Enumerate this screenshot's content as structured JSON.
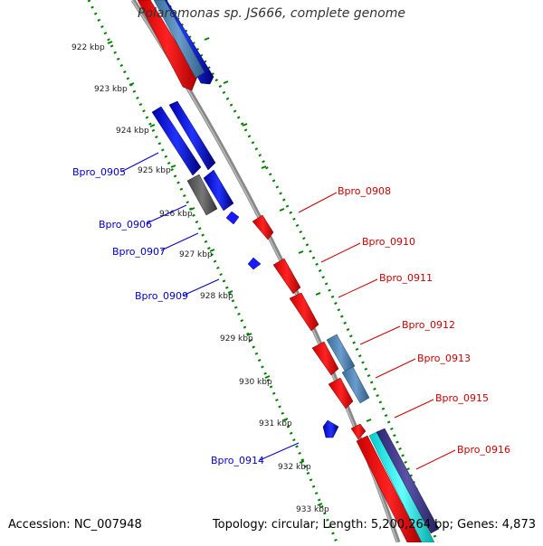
{
  "header": {
    "title": "Polaromonas sp. JS666, complete genome"
  },
  "footer": {
    "accession": "Accession: NC_007948",
    "topology": "Topology: circular; Length: 5,200,264 bp; Genes: 4,873"
  },
  "colors": {
    "forward_gene": "#ff0000",
    "reverse_gene": "#0000ff",
    "pseudo_gene": "#666666",
    "rna_gene": "#4682b4",
    "other_gene": "#00ffff",
    "misc_gene": "#483d8b",
    "backbone": "#999999",
    "scale": "#008000",
    "forward_label": "#cc0000",
    "reverse_label": "#0000cc"
  },
  "scale_labels": [
    "922 kbp",
    "923 kbp",
    "924 kbp",
    "925 kbp",
    "926 kbp",
    "927 kbp",
    "928 kbp",
    "929 kbp",
    "930 kbp",
    "931 kbp",
    "932 kbp",
    "933 kbp"
  ],
  "reverse_labels": [
    "Bpro_0905",
    "Bpro_0906",
    "Bpro_0907",
    "Bpro_0909",
    "Bpro_0914"
  ],
  "forward_labels": [
    "Bpro_0908",
    "Bpro_0910",
    "Bpro_0911",
    "Bpro_0912",
    "Bpro_0913",
    "Bpro_0915",
    "Bpro_0916"
  ]
}
